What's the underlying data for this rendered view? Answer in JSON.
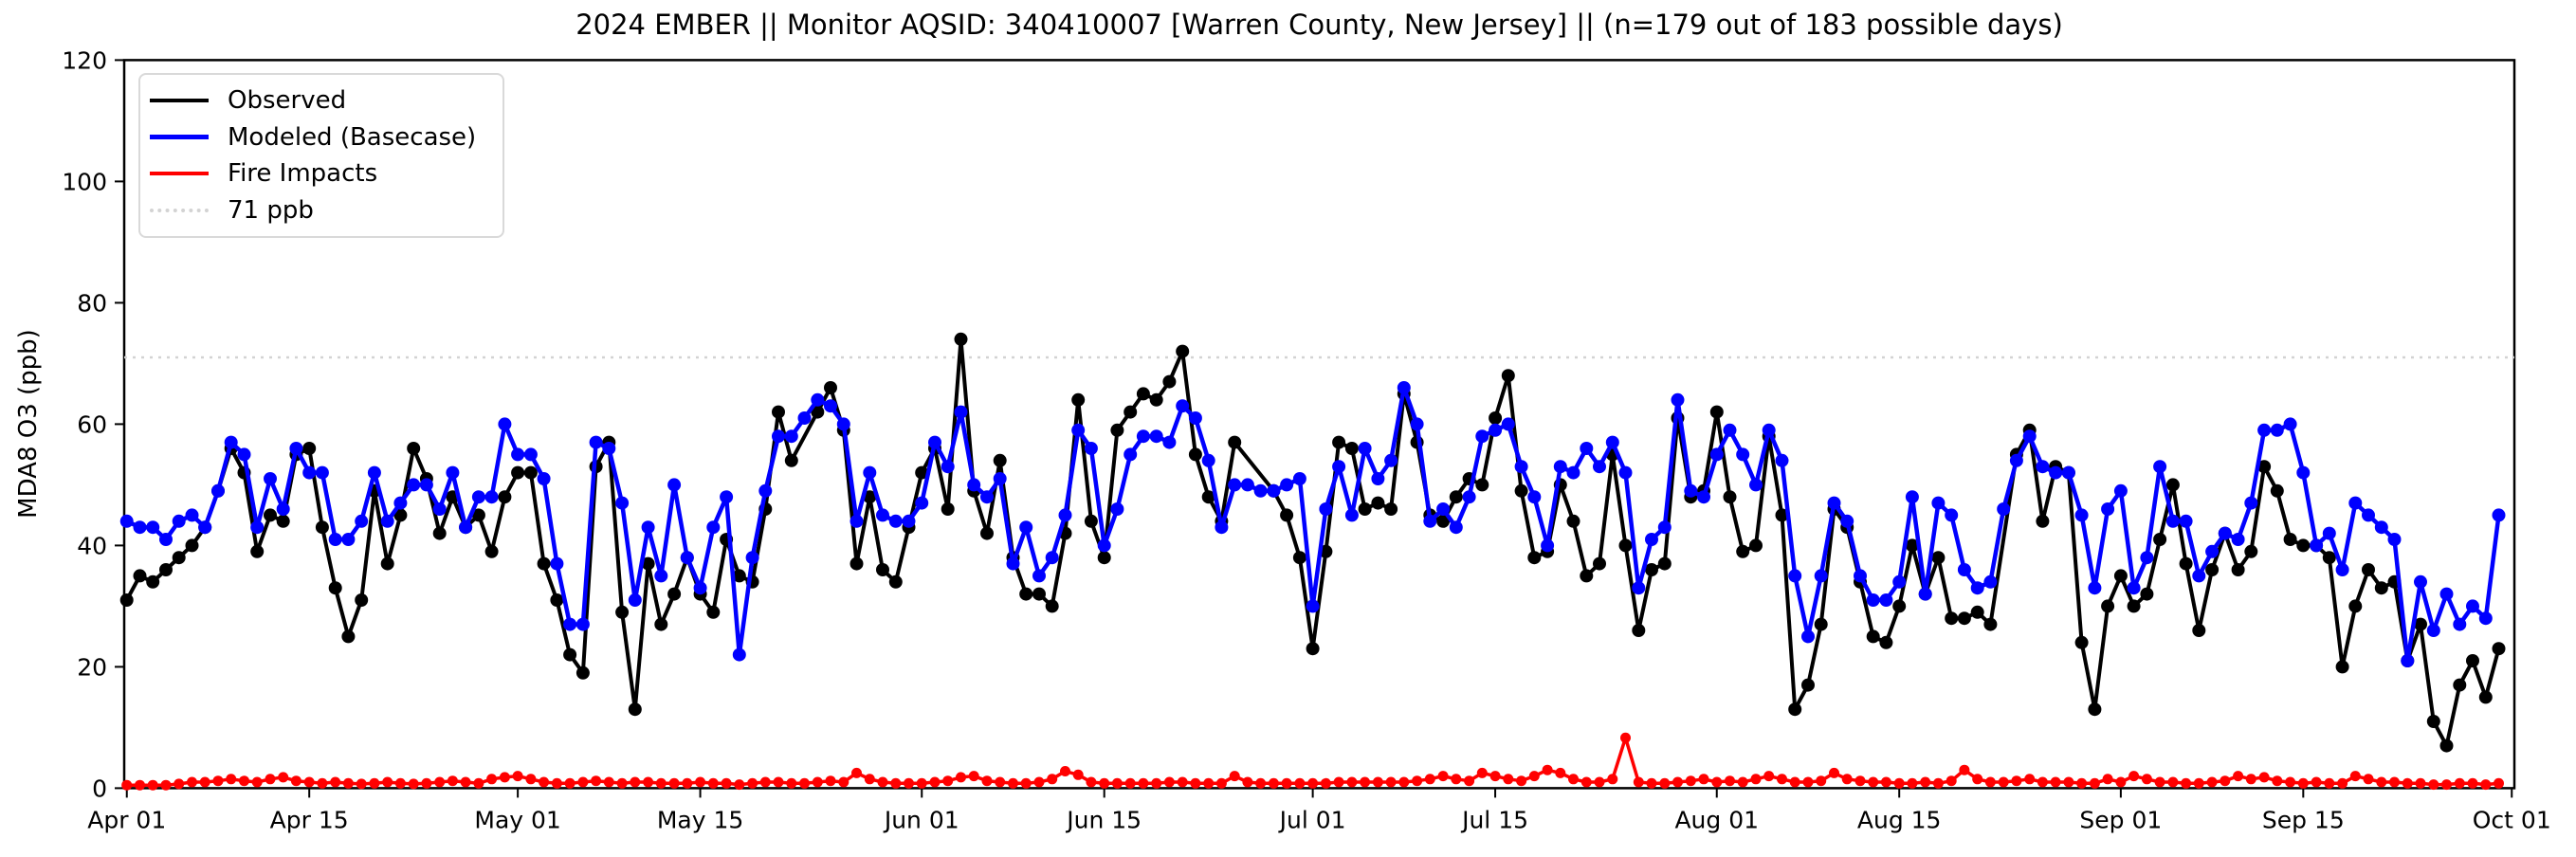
{
  "figure": {
    "title": "2024 EMBER || Monitor AQSID: 340410007 [Warren County, New Jersey] || (n=179 out of 183 possible days)",
    "ylabel": "MDA8 O3 (ppb)"
  },
  "legend_labels": [
    "Observed",
    "Modeled (Basecase)",
    "Fire Impacts",
    "71 ppb"
  ],
  "colors": {
    "observed": "#000000",
    "modeled": "#0000ff",
    "fire": "#ff0000",
    "threshold": "#d3d3d3"
  },
  "chart_data": {
    "type": "line",
    "title": "2024 EMBER || Monitor AQSID: 340410007 [Warren County, New Jersey] || (n=179 out of 183 possible days)",
    "xlabel": "",
    "ylabel": "MDA8 O3 (ppb)",
    "ylim": [
      0,
      120
    ],
    "y_ticks": [
      0,
      20,
      40,
      60,
      80,
      100,
      120
    ],
    "x_start_label": "Apr 01",
    "x_days_total": 183,
    "x_tick_days": [
      0,
      14,
      30,
      44,
      61,
      75,
      91,
      105,
      122,
      136,
      153,
      167,
      183
    ],
    "x_tick_labels": [
      "Apr 01",
      "Apr 15",
      "May 01",
      "May 15",
      "Jun 01",
      "Jun 15",
      "Jul 01",
      "Jul 15",
      "Aug 01",
      "Aug 15",
      "Sep 01",
      "Sep 15",
      "Oct 01"
    ],
    "threshold_ppb": 71,
    "grid": false,
    "legend_position": "upper left",
    "series": [
      {
        "name": "Observed",
        "color": "#000000",
        "marker_radius": 7,
        "line_width": 4,
        "values": [
          31,
          35,
          34,
          36,
          38,
          40,
          43,
          49,
          56,
          52,
          39,
          45,
          44,
          55,
          56,
          43,
          33,
          25,
          31,
          49,
          37,
          45,
          56,
          51,
          42,
          48,
          43,
          45,
          39,
          48,
          52,
          52,
          37,
          31,
          22,
          19,
          53,
          57,
          29,
          13,
          37,
          27,
          32,
          38,
          32,
          29,
          41,
          35,
          34,
          46,
          62,
          54,
          null,
          62,
          66,
          59,
          37,
          48,
          36,
          34,
          43,
          52,
          56,
          46,
          74,
          49,
          42,
          54,
          38,
          32,
          32,
          30,
          42,
          64,
          44,
          38,
          59,
          62,
          65,
          64,
          67,
          72,
          55,
          48,
          44,
          57,
          null,
          null,
          49,
          45,
          38,
          23,
          39,
          57,
          56,
          46,
          47,
          46,
          65,
          57,
          45,
          44,
          48,
          51,
          50,
          61,
          68,
          49,
          38,
          39,
          50,
          44,
          35,
          37,
          55,
          40,
          26,
          36,
          37,
          61,
          48,
          49,
          62,
          48,
          39,
          40,
          58,
          45,
          13,
          17,
          27,
          46,
          43,
          34,
          25,
          24,
          30,
          40,
          32,
          38,
          28,
          28,
          29,
          27,
          null,
          55,
          59,
          44,
          53,
          52,
          24,
          13,
          30,
          35,
          30,
          32,
          41,
          50,
          37,
          26,
          36,
          42,
          36,
          39,
          53,
          49,
          41,
          40,
          40,
          38,
          20,
          30,
          36,
          33,
          34,
          21,
          27,
          11,
          7,
          17,
          21,
          15,
          23
        ]
      },
      {
        "name": "Modeled (Basecase)",
        "color": "#0000ff",
        "marker_radius": 7,
        "line_width": 4.5,
        "values": [
          44,
          43,
          43,
          41,
          44,
          45,
          43,
          49,
          57,
          55,
          43,
          51,
          46,
          56,
          52,
          52,
          41,
          41,
          44,
          52,
          44,
          47,
          50,
          50,
          46,
          52,
          43,
          48,
          48,
          60,
          55,
          55,
          51,
          37,
          27,
          27,
          57,
          56,
          47,
          31,
          43,
          35,
          50,
          38,
          33,
          43,
          48,
          22,
          38,
          49,
          58,
          58,
          61,
          64,
          63,
          60,
          44,
          52,
          45,
          44,
          44,
          47,
          57,
          53,
          62,
          50,
          48,
          51,
          37,
          43,
          35,
          38,
          45,
          59,
          56,
          40,
          46,
          55,
          58,
          58,
          57,
          63,
          61,
          54,
          43,
          50,
          50,
          49,
          49,
          50,
          51,
          30,
          46,
          53,
          45,
          56,
          51,
          54,
          66,
          60,
          44,
          46,
          43,
          48,
          58,
          59,
          60,
          53,
          48,
          40,
          53,
          52,
          56,
          53,
          57,
          52,
          33,
          41,
          43,
          64,
          49,
          48,
          55,
          59,
          55,
          50,
          59,
          54,
          35,
          25,
          35,
          47,
          44,
          35,
          31,
          31,
          34,
          48,
          32,
          47,
          45,
          36,
          33,
          34,
          46,
          54,
          58,
          53,
          52,
          52,
          45,
          33,
          46,
          49,
          33,
          38,
          53,
          44,
          44,
          35,
          39,
          42,
          41,
          47,
          59,
          59,
          60,
          52,
          40,
          42,
          36,
          47,
          45,
          43,
          41,
          21,
          34,
          26,
          32,
          27,
          30,
          28,
          45
        ]
      },
      {
        "name": "Fire Impacts",
        "color": "#ff0000",
        "marker_radius": 5.5,
        "line_width": 3.5,
        "values": [
          0.5,
          0.5,
          0.5,
          0.5,
          0.7,
          1,
          1,
          1.2,
          1.5,
          1.2,
          1,
          1.5,
          1.8,
          1.2,
          1,
          0.8,
          1,
          0.8,
          0.7,
          0.8,
          1,
          0.8,
          0.7,
          0.8,
          1,
          1.2,
          1,
          0.8,
          1.5,
          1.8,
          2,
          1.5,
          1,
          0.8,
          0.8,
          1,
          1.2,
          1,
          0.8,
          1,
          1,
          0.8,
          0.8,
          0.8,
          1,
          0.8,
          0.8,
          0.6,
          0.8,
          1,
          1,
          0.8,
          0.8,
          1,
          1.2,
          1,
          2.5,
          1.5,
          1,
          0.8,
          0.8,
          0.8,
          1,
          1.2,
          1.8,
          2,
          1.2,
          1,
          0.8,
          0.8,
          1,
          1.5,
          2.8,
          2.2,
          1,
          0.8,
          0.8,
          0.8,
          0.8,
          0.8,
          1,
          1,
          0.8,
          0.8,
          0.8,
          2,
          1,
          0.8,
          0.8,
          0.8,
          0.8,
          0.8,
          0.8,
          1,
          1,
          1,
          1,
          1,
          1,
          1.2,
          1.5,
          2,
          1.5,
          1.2,
          2.5,
          2,
          1.5,
          1.2,
          2,
          3,
          2.5,
          1.5,
          1,
          1,
          1.5,
          8.3,
          1,
          0.8,
          0.8,
          1,
          1.2,
          1.5,
          1,
          1.2,
          1,
          1.5,
          2,
          1.5,
          1,
          1,
          1.2,
          2.5,
          1.5,
          1.2,
          1,
          1,
          0.8,
          0.8,
          1,
          0.8,
          1.2,
          3,
          1.5,
          1,
          1,
          1.2,
          1.5,
          1,
          1,
          1,
          0.8,
          0.8,
          1.5,
          1,
          2,
          1.5,
          1,
          1,
          0.8,
          0.8,
          1,
          1.2,
          2,
          1.5,
          1.8,
          1.2,
          1,
          0.8,
          1,
          0.8,
          0.8,
          2,
          1.5,
          1,
          1,
          0.8,
          0.8,
          0.6,
          0.6,
          0.8,
          0.8,
          0.6,
          0.8
        ]
      }
    ]
  }
}
